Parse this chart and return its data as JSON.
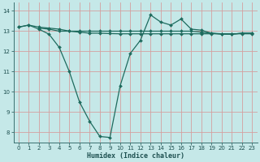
{
  "xlabel": "Humidex (Indice chaleur)",
  "bg_color": "#c5e8e8",
  "grid_color": "#d4a0a0",
  "line_color": "#1e6b5e",
  "ylim": [
    7.5,
    14.4
  ],
  "xlim": [
    -0.5,
    23.5
  ],
  "yticks": [
    8,
    9,
    10,
    11,
    12,
    13,
    14
  ],
  "xticks": [
    0,
    1,
    2,
    3,
    4,
    5,
    6,
    7,
    8,
    9,
    10,
    11,
    12,
    13,
    14,
    15,
    16,
    17,
    18,
    19,
    20,
    21,
    22,
    23
  ],
  "line1_x": [
    0,
    1,
    2,
    3,
    4,
    5,
    6,
    7,
    8,
    9,
    10,
    11,
    12,
    13,
    14,
    15,
    16,
    17,
    18,
    19,
    20,
    21,
    22,
    23
  ],
  "line1_y": [
    13.2,
    13.3,
    13.2,
    13.15,
    13.1,
    13.0,
    12.95,
    12.9,
    12.9,
    12.88,
    12.87,
    12.87,
    12.87,
    12.87,
    12.87,
    12.87,
    12.87,
    12.87,
    12.87,
    12.87,
    12.87,
    12.87,
    12.87,
    12.87
  ],
  "line2_x": [
    0,
    1,
    2,
    3,
    4,
    5,
    6,
    7,
    8,
    9,
    10,
    11,
    12,
    13,
    14,
    15,
    16,
    17,
    18,
    19,
    20,
    21,
    22,
    23
  ],
  "line2_y": [
    13.2,
    13.3,
    13.1,
    12.85,
    12.2,
    11.0,
    9.5,
    8.55,
    7.8,
    7.75,
    10.3,
    11.9,
    12.55,
    13.8,
    13.45,
    13.3,
    13.6,
    13.1,
    13.05,
    12.9,
    12.87,
    12.85,
    12.9,
    12.9
  ],
  "line3_x": [
    2,
    3,
    4,
    5,
    6,
    7,
    8,
    9,
    10,
    11,
    12,
    13,
    14,
    15,
    16,
    17,
    18,
    19,
    20,
    21,
    22,
    23
  ],
  "line3_y": [
    13.15,
    13.1,
    13.0,
    13.0,
    13.0,
    13.0,
    13.0,
    13.0,
    13.0,
    13.0,
    13.0,
    13.0,
    13.0,
    13.0,
    13.0,
    13.0,
    12.95,
    12.9,
    12.85,
    12.85,
    12.9,
    12.9
  ]
}
